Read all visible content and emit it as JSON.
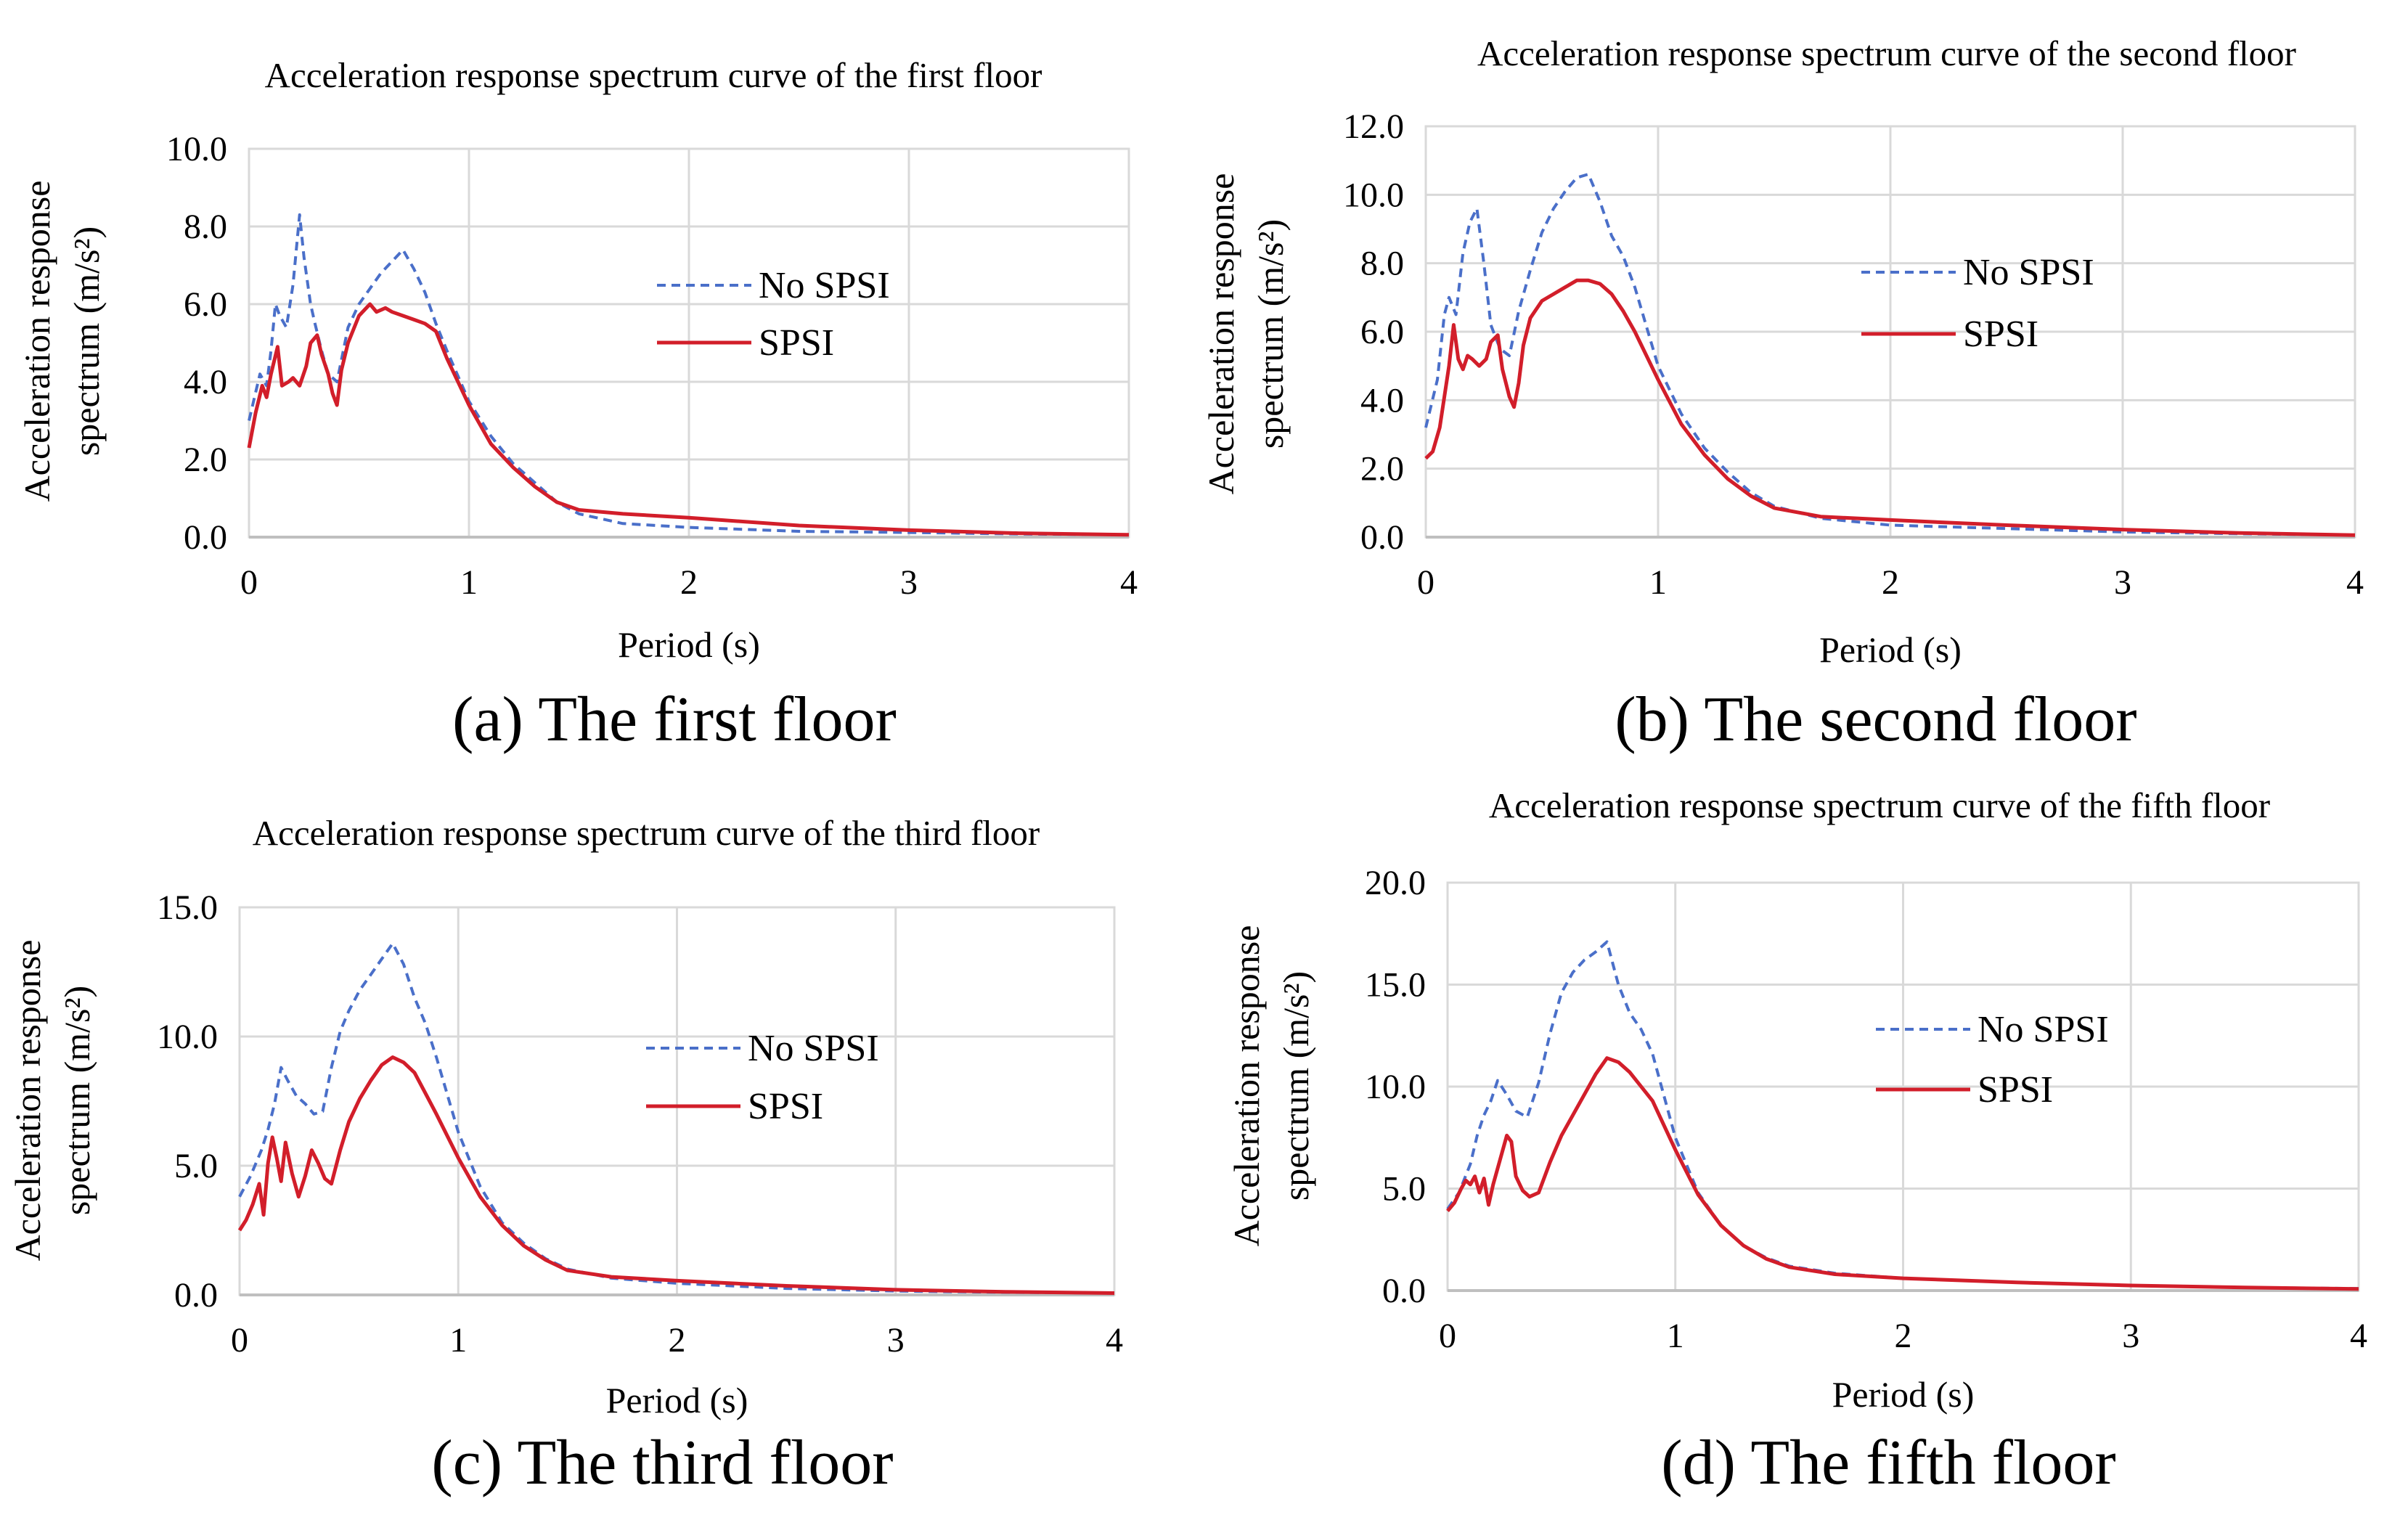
{
  "chart_data": [
    {
      "id": "a",
      "type": "line",
      "title": "Acceleration response spectrum curve of the first floor",
      "caption": "(a) The first floor",
      "xlabel": "Period (s)",
      "ylabel_line1": "Acceleration response",
      "ylabel_line2": "spectrum (m/s²)",
      "xlim": [
        0,
        4
      ],
      "ylim": [
        0,
        10
      ],
      "x_ticks": [
        "0",
        "1",
        "2",
        "3",
        "4"
      ],
      "y_ticks": [
        "0.0",
        "2.0",
        "4.0",
        "6.0",
        "8.0",
        "10.0"
      ],
      "legend": [
        "No SPSI",
        "SPSI"
      ],
      "series": [
        {
          "name": "No SPSI",
          "color": "#4a6fc9",
          "dash": "dashed",
          "x": [
            0,
            0.05,
            0.08,
            0.1,
            0.12,
            0.14,
            0.17,
            0.2,
            0.23,
            0.25,
            0.28,
            0.3,
            0.33,
            0.36,
            0.4,
            0.45,
            0.5,
            0.55,
            0.6,
            0.65,
            0.7,
            0.75,
            0.8,
            0.85,
            0.9,
            1.0,
            1.1,
            1.2,
            1.3,
            1.4,
            1.5,
            1.7,
            2.0,
            2.5,
            3.0,
            3.5,
            4.0
          ],
          "values": [
            3.0,
            4.2,
            3.9,
            4.8,
            6.0,
            5.7,
            5.4,
            6.5,
            8.3,
            7.2,
            6.0,
            5.5,
            4.8,
            4.2,
            4.0,
            5.4,
            6.0,
            6.4,
            6.8,
            7.1,
            7.4,
            6.9,
            6.3,
            5.5,
            4.8,
            3.5,
            2.6,
            1.9,
            1.4,
            0.9,
            0.6,
            0.35,
            0.25,
            0.15,
            0.12,
            0.08,
            0.06
          ]
        },
        {
          "name": "SPSI",
          "color": "#d21e2a",
          "dash": "solid",
          "x": [
            0,
            0.03,
            0.06,
            0.08,
            0.1,
            0.13,
            0.15,
            0.18,
            0.2,
            0.23,
            0.26,
            0.28,
            0.31,
            0.33,
            0.36,
            0.38,
            0.4,
            0.42,
            0.45,
            0.5,
            0.55,
            0.58,
            0.62,
            0.65,
            0.7,
            0.75,
            0.8,
            0.85,
            0.9,
            1.0,
            1.1,
            1.2,
            1.3,
            1.4,
            1.5,
            1.7,
            2.0,
            2.5,
            3.0,
            3.5,
            4.0
          ],
          "values": [
            2.3,
            3.2,
            3.9,
            3.6,
            4.2,
            4.9,
            3.9,
            4.0,
            4.1,
            3.9,
            4.4,
            5.0,
            5.2,
            4.7,
            4.2,
            3.7,
            3.4,
            4.3,
            5.0,
            5.7,
            6.0,
            5.8,
            5.9,
            5.8,
            5.7,
            5.6,
            5.5,
            5.3,
            4.6,
            3.4,
            2.4,
            1.8,
            1.3,
            0.9,
            0.7,
            0.6,
            0.5,
            0.3,
            0.18,
            0.1,
            0.06
          ]
        }
      ]
    },
    {
      "id": "b",
      "type": "line",
      "title": "Acceleration response spectrum curve of the second floor",
      "caption": "(b) The second floor",
      "xlabel": "Period (s)",
      "ylabel_line1": "Acceleration response",
      "ylabel_line2": "spectrum (m/s²)",
      "xlim": [
        0,
        4
      ],
      "ylim": [
        0,
        12
      ],
      "x_ticks": [
        "0",
        "1",
        "2",
        "3",
        "4"
      ],
      "y_ticks": [
        "0.0",
        "2.0",
        "4.0",
        "6.0",
        "8.0",
        "10.0",
        "12.0"
      ],
      "legend": [
        "No SPSI",
        "SPSI"
      ],
      "series": [
        {
          "name": "No SPSI",
          "color": "#4a6fc9",
          "dash": "dashed",
          "x": [
            0,
            0.05,
            0.08,
            0.1,
            0.13,
            0.16,
            0.19,
            0.22,
            0.25,
            0.28,
            0.32,
            0.36,
            0.4,
            0.45,
            0.5,
            0.55,
            0.6,
            0.65,
            0.7,
            0.75,
            0.8,
            0.85,
            0.9,
            1.0,
            1.1,
            1.2,
            1.3,
            1.4,
            1.5,
            1.7,
            2.0,
            2.5,
            3.0,
            3.5,
            4.0
          ],
          "values": [
            3.2,
            4.6,
            6.5,
            7.0,
            6.5,
            8.3,
            9.2,
            9.6,
            8.0,
            6.2,
            5.5,
            5.3,
            6.6,
            7.8,
            8.9,
            9.6,
            10.1,
            10.5,
            10.6,
            9.8,
            8.8,
            8.2,
            7.3,
            5.0,
            3.6,
            2.6,
            1.9,
            1.3,
            0.9,
            0.55,
            0.35,
            0.25,
            0.15,
            0.1,
            0.06
          ]
        },
        {
          "name": "SPSI",
          "color": "#d21e2a",
          "dash": "solid",
          "x": [
            0,
            0.03,
            0.06,
            0.08,
            0.1,
            0.12,
            0.14,
            0.16,
            0.18,
            0.2,
            0.23,
            0.26,
            0.28,
            0.31,
            0.33,
            0.36,
            0.38,
            0.4,
            0.42,
            0.45,
            0.5,
            0.55,
            0.6,
            0.65,
            0.7,
            0.75,
            0.8,
            0.85,
            0.9,
            1.0,
            1.1,
            1.2,
            1.3,
            1.4,
            1.5,
            1.7,
            2.0,
            2.5,
            3.0,
            3.5,
            4.0
          ],
          "values": [
            2.3,
            2.5,
            3.2,
            4.1,
            5.0,
            6.2,
            5.2,
            4.9,
            5.3,
            5.2,
            5.0,
            5.2,
            5.7,
            5.9,
            4.9,
            4.1,
            3.8,
            4.5,
            5.6,
            6.4,
            6.9,
            7.1,
            7.3,
            7.5,
            7.5,
            7.4,
            7.1,
            6.6,
            6.0,
            4.6,
            3.3,
            2.4,
            1.7,
            1.2,
            0.85,
            0.6,
            0.5,
            0.35,
            0.22,
            0.12,
            0.06
          ]
        }
      ]
    },
    {
      "id": "c",
      "type": "line",
      "title": "Acceleration response spectrum curve of the third floor",
      "caption": "(c) The third floor",
      "xlabel": "Period (s)",
      "ylabel_line1": "Acceleration response",
      "ylabel_line2": "spectrum (m/s²)",
      "xlim": [
        0,
        4
      ],
      "ylim": [
        0,
        15
      ],
      "x_ticks": [
        "0",
        "1",
        "2",
        "3",
        "4"
      ],
      "y_ticks": [
        "0.0",
        "5.0",
        "10.0",
        "15.0"
      ],
      "legend": [
        "No SPSI",
        "SPSI"
      ],
      "series": [
        {
          "name": "No SPSI",
          "color": "#4a6fc9",
          "dash": "dashed",
          "x": [
            0,
            0.05,
            0.1,
            0.13,
            0.16,
            0.19,
            0.22,
            0.26,
            0.3,
            0.34,
            0.38,
            0.42,
            0.46,
            0.5,
            0.55,
            0.6,
            0.65,
            0.7,
            0.75,
            0.8,
            0.85,
            0.9,
            1.0,
            1.1,
            1.2,
            1.3,
            1.4,
            1.5,
            1.7,
            2.0,
            2.5,
            3.0,
            3.5,
            4.0
          ],
          "values": [
            3.8,
            4.6,
            5.6,
            6.4,
            7.4,
            8.8,
            8.3,
            7.7,
            7.4,
            7.0,
            7.1,
            8.8,
            10.2,
            11.0,
            11.8,
            12.4,
            13.0,
            13.6,
            12.8,
            11.5,
            10.5,
            9.2,
            6.3,
            4.2,
            2.8,
            2.0,
            1.4,
            1.0,
            0.65,
            0.45,
            0.25,
            0.15,
            0.1,
            0.07
          ]
        },
        {
          "name": "SPSI",
          "color": "#d21e2a",
          "dash": "solid",
          "x": [
            0,
            0.03,
            0.06,
            0.09,
            0.11,
            0.13,
            0.15,
            0.17,
            0.19,
            0.21,
            0.24,
            0.27,
            0.3,
            0.33,
            0.36,
            0.39,
            0.42,
            0.46,
            0.5,
            0.55,
            0.6,
            0.65,
            0.7,
            0.75,
            0.8,
            0.85,
            0.9,
            1.0,
            1.1,
            1.2,
            1.3,
            1.4,
            1.5,
            1.7,
            2.0,
            2.5,
            3.0,
            3.5,
            4.0
          ],
          "values": [
            2.5,
            2.9,
            3.5,
            4.3,
            3.1,
            5.1,
            6.1,
            5.3,
            4.4,
            5.9,
            4.7,
            3.8,
            4.6,
            5.6,
            5.1,
            4.5,
            4.3,
            5.6,
            6.7,
            7.6,
            8.3,
            8.9,
            9.2,
            9.0,
            8.6,
            7.8,
            7.0,
            5.3,
            3.8,
            2.7,
            1.9,
            1.35,
            0.95,
            0.7,
            0.55,
            0.35,
            0.2,
            0.12,
            0.07
          ]
        }
      ]
    },
    {
      "id": "d",
      "type": "line",
      "title": "Acceleration response spectrum curve of the fifth floor",
      "caption": "(d) The fifth floor",
      "xlabel": "Period (s)",
      "ylabel_line1": "Acceleration response",
      "ylabel_line2": "spectrum (m/s²)",
      "xlim": [
        0,
        4
      ],
      "ylim": [
        0,
        20
      ],
      "x_ticks": [
        "0",
        "1",
        "2",
        "3",
        "4"
      ],
      "y_ticks": [
        "0.0",
        "5.0",
        "10.0",
        "15.0",
        "20.0"
      ],
      "legend": [
        "No SPSI",
        "SPSI"
      ],
      "series": [
        {
          "name": "No SPSI",
          "color": "#4a6fc9",
          "dash": "dashed",
          "x": [
            0,
            0.05,
            0.1,
            0.13,
            0.16,
            0.19,
            0.22,
            0.26,
            0.3,
            0.35,
            0.4,
            0.45,
            0.5,
            0.55,
            0.6,
            0.65,
            0.7,
            0.75,
            0.8,
            0.85,
            0.9,
            1.0,
            1.1,
            1.2,
            1.3,
            1.4,
            1.5,
            1.7,
            2.0,
            2.5,
            3.0,
            3.5,
            4.0
          ],
          "values": [
            4.0,
            4.8,
            6.2,
            7.6,
            8.6,
            9.3,
            10.3,
            9.6,
            8.8,
            8.5,
            10.2,
            12.6,
            14.6,
            15.6,
            16.2,
            16.6,
            17.1,
            15.0,
            13.6,
            12.8,
            11.6,
            7.5,
            4.8,
            3.2,
            2.2,
            1.6,
            1.2,
            0.85,
            0.6,
            0.4,
            0.25,
            0.15,
            0.1
          ]
        },
        {
          "name": "SPSI",
          "color": "#d21e2a",
          "dash": "solid",
          "x": [
            0,
            0.03,
            0.06,
            0.08,
            0.1,
            0.12,
            0.14,
            0.16,
            0.18,
            0.2,
            0.23,
            0.26,
            0.28,
            0.3,
            0.33,
            0.36,
            0.4,
            0.45,
            0.5,
            0.55,
            0.6,
            0.65,
            0.7,
            0.75,
            0.8,
            0.85,
            0.9,
            1.0,
            1.1,
            1.2,
            1.3,
            1.4,
            1.5,
            1.7,
            2.0,
            2.5,
            3.0,
            3.5,
            4.0
          ],
          "values": [
            3.9,
            4.3,
            5.0,
            5.4,
            5.2,
            5.6,
            4.8,
            5.5,
            4.2,
            5.2,
            6.4,
            7.6,
            7.3,
            5.6,
            4.9,
            4.6,
            4.8,
            6.3,
            7.6,
            8.6,
            9.6,
            10.6,
            11.4,
            11.2,
            10.7,
            10.0,
            9.3,
            6.9,
            4.7,
            3.2,
            2.2,
            1.55,
            1.15,
            0.8,
            0.6,
            0.4,
            0.25,
            0.15,
            0.08
          ]
        }
      ]
    }
  ]
}
